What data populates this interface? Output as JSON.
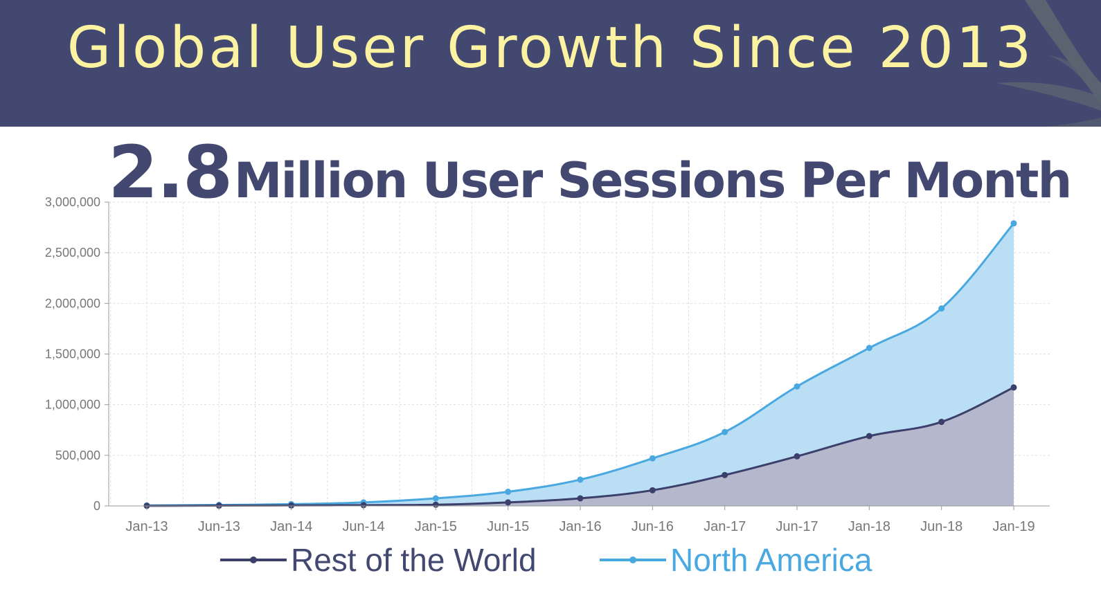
{
  "banner": {
    "title": "Global User Growth Since 2013",
    "background": "#434871",
    "title_color": "#fbf3a1"
  },
  "headline": {
    "number": "2.8",
    "text": "Million User Sessions Per Month",
    "color": "#434871"
  },
  "chart_data": {
    "type": "area",
    "title": "",
    "xlabel": "",
    "ylabel": "",
    "categories": [
      "Jan-13",
      "Jun-13",
      "Jan-14",
      "Jun-14",
      "Jan-15",
      "Jun-15",
      "Jan-16",
      "Jun-16",
      "Jan-17",
      "Jun-17",
      "Jan-18",
      "Jun-18",
      "Jan-19"
    ],
    "yticks": [
      "0",
      "500,000",
      "1,000,000",
      "1,500,000",
      "2,000,000",
      "2,500,000",
      "3,000,000"
    ],
    "ylim": [
      0,
      3000000
    ],
    "grid": true,
    "legend_position": "bottom",
    "series": [
      {
        "name": "Rest of the World",
        "color": "#3b3f6b",
        "fill": "#b4b5c9",
        "values": [
          1000,
          3000,
          5000,
          8000,
          12000,
          35000,
          75000,
          155000,
          305000,
          490000,
          690000,
          830000,
          1170000
        ]
      },
      {
        "name": "North America",
        "color": "#4aa8e0",
        "fill": "#b6dcf3",
        "values": [
          5000,
          10000,
          18000,
          35000,
          75000,
          140000,
          260000,
          470000,
          730000,
          1180000,
          1560000,
          1950000,
          2790000
        ]
      }
    ]
  }
}
